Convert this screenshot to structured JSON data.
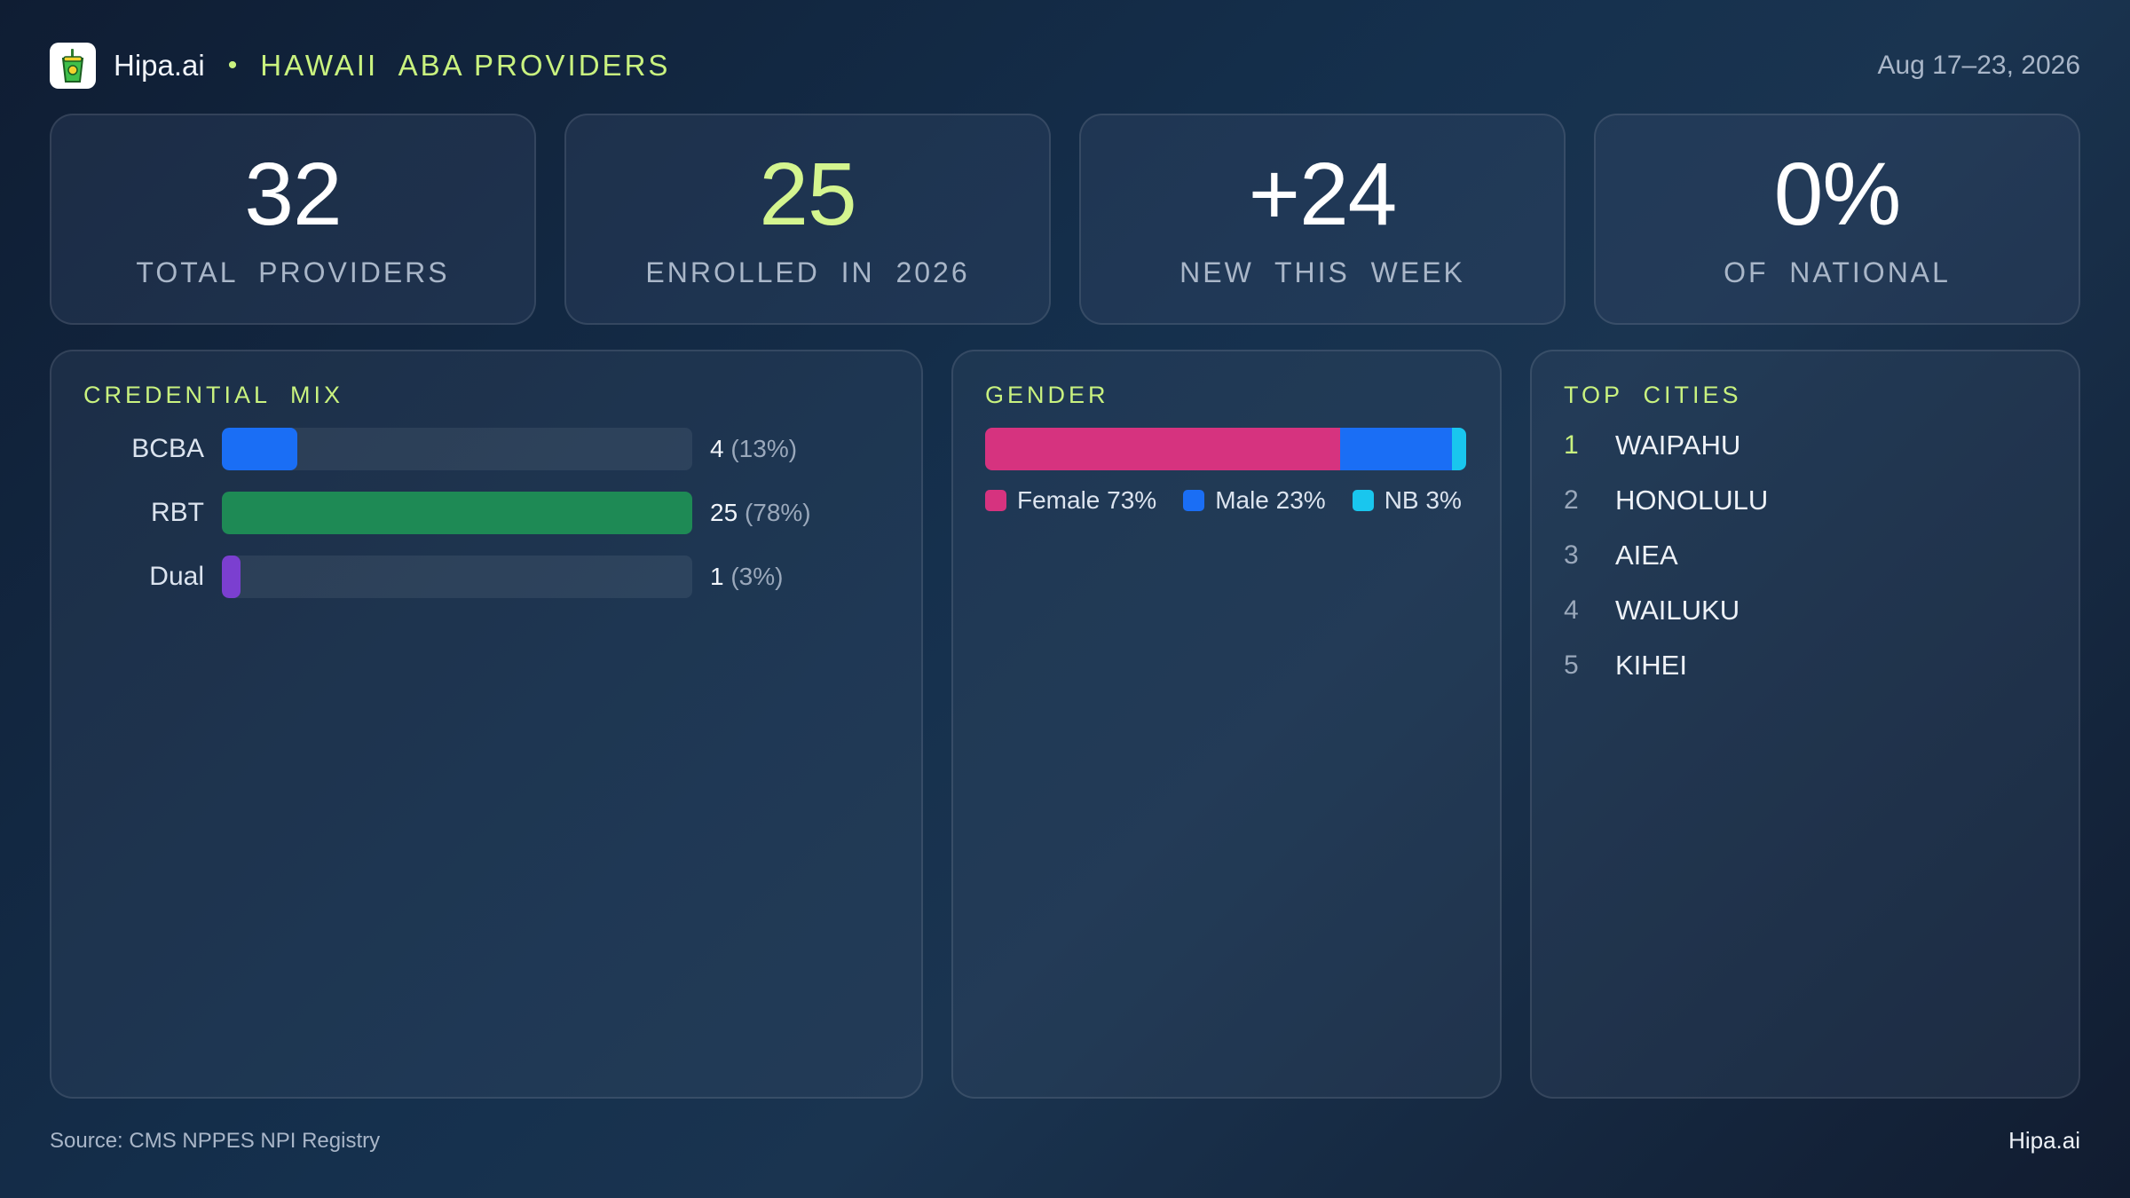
{
  "header": {
    "brand": "Hipa.ai",
    "separator": "•",
    "title": "HAWAII  ABA PROVIDERS",
    "date": "Aug 17–23, 2026",
    "logo_icon": "drink-cup-icon"
  },
  "kpis": [
    {
      "value": "32",
      "label": "TOTAL  PROVIDERS",
      "accent": false
    },
    {
      "value": "25",
      "label": "ENROLLED  IN  2026",
      "accent": true
    },
    {
      "value": "+24",
      "label": "NEW  THIS  WEEK",
      "accent": false
    },
    {
      "value": "0%",
      "label": "OF  NATIONAL",
      "accent": false
    }
  ],
  "credential": {
    "title": "CREDENTIAL  MIX",
    "rows": [
      {
        "label": "BCBA",
        "count": "4",
        "pct": "(13%)",
        "fraction": 0.16,
        "color": "#1a6ef5"
      },
      {
        "label": "RBT",
        "count": "25",
        "pct": "(78%)",
        "fraction": 1.0,
        "color": "#1e8a55"
      },
      {
        "label": "Dual",
        "count": "1",
        "pct": "(3%)",
        "fraction": 0.04,
        "color": "#7b3fd0"
      }
    ]
  },
  "gender": {
    "title": "GENDER",
    "segments": [
      {
        "label": "Female 73%",
        "share": 0.73,
        "color": "#d6337f"
      },
      {
        "label": "Male 23%",
        "share": 0.23,
        "color": "#1a6ef5"
      },
      {
        "label": "NB 3%",
        "share": 0.03,
        "color": "#19c6ee"
      }
    ]
  },
  "cities": {
    "title": "TOP  CITIES",
    "items": [
      {
        "rank": "1",
        "name": "WAIPAHU"
      },
      {
        "rank": "2",
        "name": "HONOLULU"
      },
      {
        "rank": "3",
        "name": "AIEA"
      },
      {
        "rank": "4",
        "name": "WAILUKU"
      },
      {
        "rank": "5",
        "name": "KIHEI"
      }
    ]
  },
  "footer": {
    "source": "Source: CMS NPPES NPI Registry",
    "brand": "Hipa.ai"
  }
}
